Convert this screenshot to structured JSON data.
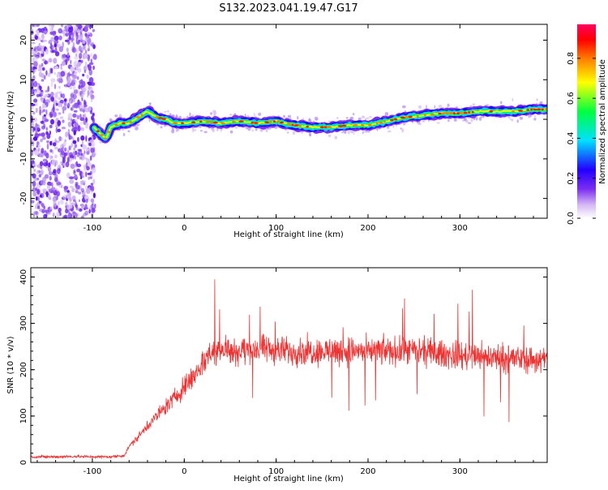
{
  "title": "S132.2023.041.19.47.G17",
  "chart_data": [
    {
      "type": "heatmap",
      "xlabel": "Height of straight line (km)",
      "ylabel": "Frequency (Hz)",
      "xlim": [
        -167,
        395
      ],
      "ylim": [
        -25,
        24
      ],
      "xticks": [
        -100,
        0,
        100,
        200,
        300
      ],
      "yticks": [
        -20,
        -10,
        0,
        10,
        20
      ],
      "grid": false,
      "colorbar": {
        "label": "Normalized spectral amplitude",
        "range": [
          0.0,
          0.97
        ],
        "ticks": [
          0.0,
          0.2,
          0.4,
          0.6,
          0.8
        ],
        "colormap": [
          "#ffffff",
          "#c9a8f0",
          "#7b2ff0",
          "#2200ff",
          "#00e0ff",
          "#00ff40",
          "#ffff00",
          "#ff8000",
          "#ff0000",
          "#ff0060"
        ]
      },
      "noise_region_x": [
        -167,
        -97
      ],
      "ridge": {
        "x": [
          -98,
          -90,
          -85,
          -80,
          -70,
          -60,
          -50,
          -40,
          -30,
          -20,
          -10,
          0,
          20,
          40,
          60,
          80,
          100,
          120,
          140,
          160,
          180,
          200,
          220,
          240,
          260,
          280,
          300,
          320,
          340,
          360,
          380,
          395
        ],
        "y": [
          -2,
          -4,
          -5,
          -2,
          -1,
          -1,
          0.5,
          2,
          0.5,
          0,
          -1,
          -1,
          -0.5,
          -1,
          -0.5,
          -1,
          -0.5,
          -1.5,
          -2,
          -2,
          -1.5,
          -1.5,
          -0.5,
          0.5,
          1,
          1.5,
          1.5,
          2,
          2,
          2,
          2.5,
          2.5
        ]
      }
    },
    {
      "type": "line",
      "xlabel": "Height of straight line (km)",
      "ylabel": "SNR (10 * v/v)",
      "xlim": [
        -167,
        395
      ],
      "ylim": [
        0,
        420
      ],
      "xticks": [
        -100,
        0,
        100,
        200,
        300
      ],
      "yticks": [
        0,
        100,
        200,
        300,
        400
      ],
      "grid": false,
      "color": "#ee3333",
      "x": [
        -167,
        -140,
        -120,
        -100,
        -80,
        -65,
        -60,
        -50,
        -40,
        -30,
        -20,
        -10,
        0,
        10,
        20,
        30,
        40,
        60,
        80,
        100,
        150,
        200,
        250,
        300,
        350,
        395
      ],
      "y": [
        12,
        12,
        13,
        12,
        12,
        15,
        35,
        55,
        80,
        100,
        120,
        140,
        165,
        185,
        215,
        240,
        245,
        240,
        245,
        240,
        240,
        240,
        240,
        230,
        225,
        220
      ]
    }
  ]
}
